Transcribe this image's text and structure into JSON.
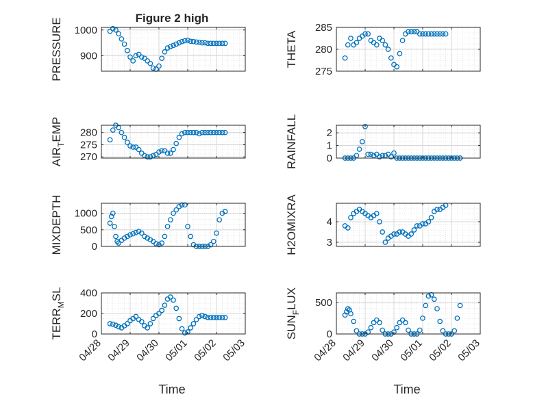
{
  "figure": {
    "title": "Figure 2 high",
    "xlabel": "Time",
    "x_tick_labels": [
      "04/28",
      "04/29",
      "04/30",
      "05/01",
      "05/02",
      "05/03"
    ],
    "marker_color": "#0072BD",
    "grid_color": "#d7d7d7"
  },
  "chart_data": [
    {
      "type": "scatter",
      "ylabel": "PRESSURE",
      "ylim": [
        840,
        1010
      ],
      "yticks": [
        900,
        1000
      ],
      "xlim": [
        0,
        5
      ],
      "x": [
        0.3,
        0.4,
        0.5,
        0.6,
        0.7,
        0.8,
        0.9,
        1.0,
        1.1,
        1.2,
        1.3,
        1.4,
        1.5,
        1.6,
        1.7,
        1.8,
        1.9,
        2.0,
        2.1,
        2.2,
        2.3,
        2.4,
        2.5,
        2.6,
        2.7,
        2.8,
        2.9,
        3.0,
        3.1,
        3.2,
        3.3,
        3.4,
        3.5,
        3.6,
        3.7,
        3.8,
        3.9,
        4.0,
        4.1,
        4.2,
        4.3
      ],
      "y": [
        995,
        1005,
        1000,
        985,
        965,
        945,
        920,
        895,
        880,
        900,
        905,
        895,
        890,
        880,
        870,
        852,
        848,
        860,
        890,
        915,
        930,
        935,
        940,
        945,
        950,
        955,
        958,
        960,
        956,
        955,
        953,
        952,
        950,
        950,
        948,
        948,
        948,
        948,
        948,
        948,
        948
      ]
    },
    {
      "type": "scatter",
      "ylabel": "THETA",
      "ylim": [
        275,
        285
      ],
      "yticks": [
        275,
        280,
        285
      ],
      "xlim": [
        0,
        5
      ],
      "x": [
        0.3,
        0.4,
        0.5,
        0.6,
        0.7,
        0.8,
        0.9,
        1.0,
        1.1,
        1.2,
        1.3,
        1.4,
        1.5,
        1.6,
        1.7,
        1.8,
        1.9,
        2.0,
        2.1,
        2.2,
        2.3,
        2.4,
        2.5,
        2.6,
        2.7,
        2.8,
        2.9,
        3.0,
        3.1,
        3.2,
        3.3,
        3.4,
        3.5,
        3.6,
        3.7,
        3.8
      ],
      "y": [
        278,
        281,
        282.5,
        281,
        281.5,
        282.5,
        283,
        283.5,
        283.5,
        282,
        281.5,
        281,
        282.5,
        282,
        281,
        280,
        278,
        276.5,
        276,
        279,
        282,
        283.5,
        284,
        284,
        284,
        284,
        283.5,
        283.5,
        283.5,
        283.5,
        283.5,
        283.5,
        283.5,
        283.5,
        283.5,
        283.5
      ]
    },
    {
      "type": "scatter",
      "ylabel": "AIR_TEMP",
      "ylim": [
        269.5,
        283
      ],
      "yticks": [
        270,
        275,
        280
      ],
      "xlim": [
        0,
        5
      ],
      "x": [
        0.3,
        0.4,
        0.5,
        0.6,
        0.7,
        0.8,
        0.9,
        1.0,
        1.1,
        1.2,
        1.3,
        1.4,
        1.5,
        1.6,
        1.7,
        1.8,
        1.9,
        2.0,
        2.1,
        2.2,
        2.3,
        2.4,
        2.5,
        2.6,
        2.7,
        2.8,
        2.9,
        3.0,
        3.1,
        3.2,
        3.3,
        3.4,
        3.5,
        3.6,
        3.7,
        3.8,
        3.9,
        4.0,
        4.1,
        4.2,
        4.3
      ],
      "y": [
        277,
        281,
        283,
        282,
        280,
        278,
        276,
        274.5,
        274,
        274,
        273,
        271.5,
        270.5,
        270,
        270,
        270.5,
        271,
        272,
        272.5,
        272.5,
        271.5,
        271.5,
        273,
        275.5,
        278,
        279.5,
        280,
        280,
        280,
        280,
        280,
        279.5,
        280,
        280,
        280,
        280,
        280,
        280,
        280,
        280,
        280
      ]
    },
    {
      "type": "scatter",
      "ylabel": "RAINFALL",
      "ylim": [
        0,
        2.6
      ],
      "yticks": [
        0,
        1,
        2
      ],
      "xlim": [
        0,
        5
      ],
      "x": [
        0.3,
        0.4,
        0.5,
        0.6,
        0.7,
        0.8,
        0.9,
        1.0,
        1.1,
        1.2,
        1.3,
        1.4,
        1.5,
        1.6,
        1.7,
        1.8,
        1.9,
        2.0,
        2.1,
        2.2,
        2.3,
        2.4,
        2.5,
        2.6,
        2.7,
        2.8,
        2.9,
        3.0,
        3.1,
        3.2,
        3.3,
        3.4,
        3.5,
        3.6,
        3.7,
        3.8,
        3.9,
        4.0,
        4.1,
        4.2,
        4.3
      ],
      "y": [
        0,
        0,
        0,
        0,
        0.2,
        0.7,
        1.3,
        2.5,
        0.3,
        0.3,
        0.2,
        0.3,
        0.1,
        0.2,
        0.2,
        0.3,
        0.1,
        0.4,
        0,
        0,
        0,
        0,
        0,
        0,
        0,
        0,
        0,
        0,
        0,
        0,
        0,
        0,
        0,
        0,
        0,
        0,
        0,
        0,
        0,
        0,
        0
      ]
    },
    {
      "type": "scatter",
      "ylabel": "MIXDEPTH",
      "ylim": [
        0,
        1300
      ],
      "yticks": [
        0,
        500,
        1000
      ],
      "xlim": [
        0,
        5
      ],
      "x": [
        0.3,
        0.35,
        0.4,
        0.45,
        0.5,
        0.55,
        0.6,
        0.7,
        0.8,
        0.9,
        1.0,
        1.1,
        1.2,
        1.3,
        1.4,
        1.5,
        1.6,
        1.7,
        1.8,
        1.9,
        2.0,
        2.1,
        2.2,
        2.3,
        2.4,
        2.5,
        2.6,
        2.7,
        2.8,
        2.9,
        3.0,
        3.1,
        3.2,
        3.3,
        3.4,
        3.5,
        3.6,
        3.7,
        3.8,
        3.9,
        4.0,
        4.1,
        4.2,
        4.3
      ],
      "y": [
        700,
        900,
        1000,
        600,
        300,
        150,
        100,
        180,
        250,
        300,
        350,
        380,
        420,
        450,
        400,
        300,
        250,
        200,
        150,
        80,
        50,
        100,
        300,
        600,
        800,
        1000,
        1100,
        1200,
        1250,
        1250,
        600,
        300,
        50,
        0,
        0,
        0,
        0,
        0,
        50,
        150,
        400,
        800,
        1000,
        1050
      ]
    },
    {
      "type": "scatter",
      "ylabel": "H2OMIXRA",
      "ylim": [
        2.8,
        4.9
      ],
      "yticks": [
        3,
        4
      ],
      "xlim": [
        0,
        5
      ],
      "x": [
        0.3,
        0.4,
        0.5,
        0.6,
        0.7,
        0.8,
        0.9,
        1.0,
        1.1,
        1.2,
        1.3,
        1.4,
        1.5,
        1.6,
        1.7,
        1.8,
        1.9,
        2.0,
        2.1,
        2.2,
        2.3,
        2.4,
        2.5,
        2.6,
        2.7,
        2.8,
        2.9,
        3.0,
        3.1,
        3.2,
        3.3,
        3.4,
        3.5,
        3.6,
        3.7,
        3.8
      ],
      "y": [
        3.8,
        3.7,
        4.2,
        4.4,
        4.5,
        4.6,
        4.5,
        4.4,
        4.3,
        4.2,
        4.3,
        4.4,
        4.0,
        3.5,
        3.0,
        3.2,
        3.3,
        3.4,
        3.4,
        3.5,
        3.5,
        3.4,
        3.3,
        3.4,
        3.6,
        3.8,
        3.8,
        3.9,
        3.9,
        4.0,
        4.2,
        4.5,
        4.6,
        4.6,
        4.7,
        4.8
      ]
    },
    {
      "type": "scatter",
      "ylabel": "TERR_MSL",
      "ylim": [
        0,
        400
      ],
      "yticks": [
        0,
        200,
        400
      ],
      "xlim": [
        0,
        5
      ],
      "x": [
        0.3,
        0.4,
        0.5,
        0.6,
        0.7,
        0.8,
        0.9,
        1.0,
        1.1,
        1.2,
        1.3,
        1.4,
        1.5,
        1.6,
        1.7,
        1.8,
        1.9,
        2.0,
        2.1,
        2.2,
        2.3,
        2.4,
        2.5,
        2.6,
        2.7,
        2.8,
        2.9,
        3.0,
        3.1,
        3.2,
        3.3,
        3.4,
        3.5,
        3.6,
        3.7,
        3.8,
        3.9,
        4.0,
        4.1,
        4.2,
        4.3
      ],
      "y": [
        100,
        95,
        85,
        70,
        60,
        80,
        100,
        130,
        150,
        170,
        140,
        120,
        80,
        60,
        100,
        150,
        180,
        200,
        230,
        280,
        340,
        360,
        330,
        250,
        150,
        50,
        10,
        20,
        60,
        100,
        140,
        170,
        180,
        170,
        160,
        160,
        160,
        160,
        160,
        160,
        160
      ]
    },
    {
      "type": "scatter",
      "ylabel": "SUN_FLUX",
      "ylim": [
        0,
        650
      ],
      "yticks": [
        0,
        500
      ],
      "xlim": [
        0,
        5
      ],
      "x": [
        0.3,
        0.35,
        0.4,
        0.45,
        0.5,
        0.6,
        0.7,
        0.8,
        0.9,
        1.0,
        1.1,
        1.2,
        1.3,
        1.4,
        1.5,
        1.6,
        1.7,
        1.8,
        1.9,
        2.0,
        2.1,
        2.2,
        2.3,
        2.4,
        2.5,
        2.6,
        2.7,
        2.8,
        2.9,
        3.0,
        3.1,
        3.2,
        3.3,
        3.4,
        3.5,
        3.6,
        3.7,
        3.8,
        3.9,
        4.0,
        4.1,
        4.2,
        4.3
      ],
      "y": [
        300,
        350,
        400,
        380,
        320,
        200,
        50,
        0,
        0,
        0,
        30,
        100,
        180,
        220,
        180,
        60,
        0,
        0,
        0,
        30,
        100,
        180,
        220,
        180,
        60,
        0,
        0,
        0,
        60,
        250,
        450,
        600,
        620,
        550,
        400,
        200,
        50,
        0,
        0,
        0,
        50,
        250,
        450
      ]
    }
  ]
}
